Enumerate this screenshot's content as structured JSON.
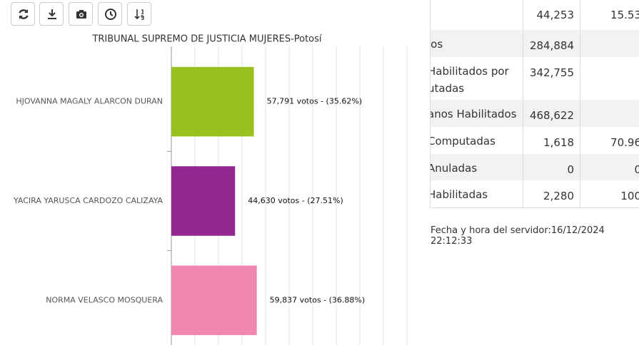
{
  "chart_data": {
    "type": "hbar",
    "title": "TRIBUNAL SUPREMO DE JUSTICIA MUJERES-Potosí",
    "categories": [
      "HJOVANNA MAGALY ALARCON DURAN",
      "YACIRA YARUSCA CARDOZO CALIZAYA",
      "NORMA VELASCO MOSQUERA"
    ],
    "values": [
      57791,
      44630,
      59837
    ],
    "value_labels": [
      "57,791 votos - (35.62%)",
      "44,630 votos - (27.51%)",
      "59,837 votos - (36.88%)"
    ],
    "colors": [
      "#99c221",
      "#93278f",
      "#ef87b0"
    ],
    "xlim": [
      0,
      165000
    ],
    "xticks": [
      0,
      16500,
      33000,
      49500,
      66000,
      82500,
      99000,
      115500,
      132000,
      148500,
      165000
    ],
    "grid": true
  },
  "table": {
    "rows": [
      [
        "",
        "44,253",
        "15.53"
      ],
      [
        "los",
        "284,884",
        ""
      ],
      [
        "Habilitados por\nutadas",
        "342,755",
        ""
      ],
      [
        "anos Habilitados",
        "468,622",
        ""
      ],
      [
        "Computadas",
        "1,618",
        "70.96"
      ],
      [
        "Anuladas",
        "0",
        "0"
      ],
      [
        "Habilitadas",
        "2,280",
        "100"
      ]
    ]
  },
  "footer": {
    "label": "Fecha y hora del servidor:",
    "value": "16/12/2024 22:12:33"
  }
}
